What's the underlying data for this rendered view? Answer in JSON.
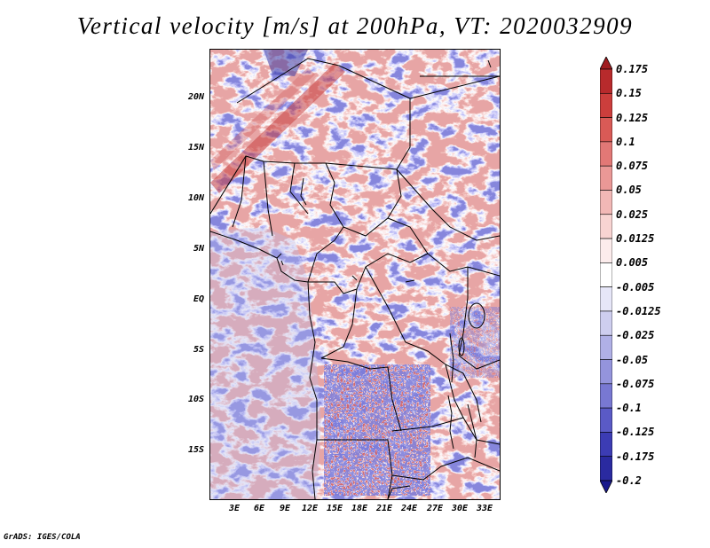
{
  "title": "Vertical velocity [m/s] at 200hPa, VT: 2020032909",
  "footer": "GrADS: IGES/COLA",
  "map": {
    "lat_labels": [
      "20N",
      "15N",
      "10N",
      "5N",
      "EQ",
      "5S",
      "10S",
      "15S"
    ],
    "lon_labels": [
      "3E",
      "6E",
      "9E",
      "12E",
      "15E",
      "18E",
      "21E",
      "24E",
      "27E",
      "30E",
      "33E"
    ]
  },
  "colorbar": {
    "labels": [
      "0.175",
      "0.15",
      "0.125",
      "0.1",
      "0.075",
      "0.05",
      "0.025",
      "0.0125",
      "0.005",
      "-0.005",
      "-0.0125",
      "-0.025",
      "-0.05",
      "-0.075",
      "-0.1",
      "-0.125",
      "-0.175",
      "-0.2"
    ],
    "colors": [
      "#a01c20",
      "#b82a2c",
      "#cc3e3c",
      "#d95a56",
      "#e27876",
      "#ea9896",
      "#f2b8b6",
      "#f8d4d2",
      "#fcecec",
      "#ffffff",
      "#e6e6f8",
      "#ceceef",
      "#b0b0e6",
      "#9494dc",
      "#7878d2",
      "#5a5ac6",
      "#3c3cb4",
      "#2a2aa0",
      "#1a1a8c"
    ]
  }
}
